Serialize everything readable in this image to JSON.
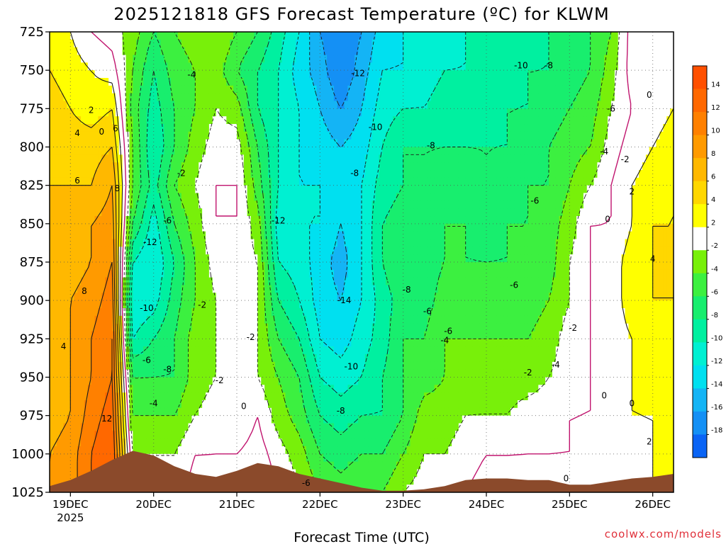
{
  "header": {
    "title": "2025121818 GFS Forecast Temperature (ºC) for KLWM"
  },
  "footer": {
    "xlabel": "Forecast Time (UTC)",
    "credit": "coolwx.com/models"
  },
  "colors": {
    "terrain": "#8b4a2b",
    "contour_pos": "#1a1a1a",
    "zero_line": "#c0146e",
    "bins": [
      {
        "lo": -20,
        "hi": -18,
        "color": "#0a64f5"
      },
      {
        "lo": -18,
        "hi": -16,
        "color": "#1490f5"
      },
      {
        "lo": -16,
        "hi": -14,
        "color": "#14b4f5"
      },
      {
        "lo": -14,
        "hi": -12,
        "color": "#00e0f0"
      },
      {
        "lo": -12,
        "hi": -10,
        "color": "#00f0d2"
      },
      {
        "lo": -10,
        "hi": -8,
        "color": "#00f0a0"
      },
      {
        "lo": -8,
        "hi": -6,
        "color": "#18ee6e"
      },
      {
        "lo": -6,
        "hi": -4,
        "color": "#3cf040"
      },
      {
        "lo": -4,
        "hi": -2,
        "color": "#78f00a"
      },
      {
        "lo": -2,
        "hi": 2,
        "color": "#ffffff"
      },
      {
        "lo": 2,
        "hi": 4,
        "color": "#ffff00"
      },
      {
        "lo": 4,
        "hi": 6,
        "color": "#ffd700"
      },
      {
        "lo": 6,
        "hi": 8,
        "color": "#ffb800"
      },
      {
        "lo": 8,
        "hi": 10,
        "color": "#ff9a00"
      },
      {
        "lo": 10,
        "hi": 12,
        "color": "#ff8000"
      },
      {
        "lo": 12,
        "hi": 14,
        "color": "#ff6800"
      },
      {
        "lo": 14,
        "hi": 16,
        "color": "#ff5000"
      }
    ]
  },
  "chart_data": {
    "type": "heatmap",
    "title": "2025121818 GFS Forecast Temperature (ºC) for KLWM",
    "xlabel": "Forecast Time (UTC)",
    "ylabel": "",
    "x_range_hours": [
      0,
      180
    ],
    "y_range_hpa": [
      725,
      1025
    ],
    "y_ticks": [
      "725",
      "750",
      "775",
      "800",
      "825",
      "850",
      "875",
      "900",
      "925",
      "950",
      "975",
      "1000",
      "1025"
    ],
    "x_ticks": [
      {
        "label": "19DEC",
        "hour": 6,
        "sub": "2025"
      },
      {
        "label": "20DEC",
        "hour": 30,
        "sub": ""
      },
      {
        "label": "21DEC",
        "hour": 54,
        "sub": ""
      },
      {
        "label": "22DEC",
        "hour": 78,
        "sub": ""
      },
      {
        "label": "23DEC",
        "hour": 102,
        "sub": ""
      },
      {
        "label": "24DEC",
        "hour": 126,
        "sub": ""
      },
      {
        "label": "25DEC",
        "hour": 150,
        "sub": ""
      },
      {
        "label": "26DEC",
        "hour": 174,
        "sub": ""
      }
    ],
    "colorbar_ticks": [
      "14",
      "12",
      "10",
      "8",
      "6",
      "4",
      "2",
      "-2",
      "-4",
      "-6",
      "-8",
      "-10",
      "-12",
      "-14",
      "-16",
      "-18"
    ],
    "grid": true,
    "pressure_levels": [
      725,
      750,
      775,
      800,
      825,
      850,
      875,
      900,
      925,
      950,
      975,
      1000,
      1025
    ],
    "temperature_by_time": [
      {
        "hour": 0,
        "temps": [
          3,
          4,
          5,
          5,
          6,
          6,
          6,
          7,
          6,
          6,
          7,
          8,
          8
        ]
      },
      {
        "hour": 6,
        "temps": [
          2,
          3,
          4,
          5,
          6,
          7,
          7,
          8,
          8,
          8,
          8,
          9,
          9
        ]
      },
      {
        "hour": 12,
        "temps": [
          0,
          2,
          3,
          5,
          6,
          8,
          8,
          9,
          10,
          10,
          11,
          12,
          12
        ]
      },
      {
        "hour": 18,
        "temps": [
          -1,
          1,
          4,
          6,
          8,
          9,
          10,
          11,
          12,
          12,
          13,
          14,
          14
        ]
      },
      {
        "hour": 24,
        "temps": [
          -3,
          -4,
          -5,
          -4,
          -4,
          -6,
          -10,
          -12,
          -10,
          -6,
          -4,
          -2,
          -1
        ]
      },
      {
        "hour": 30,
        "temps": [
          -6,
          -8,
          -9,
          -10,
          -9,
          -11,
          -12,
          -11,
          -8,
          -6,
          -4,
          -2,
          -1
        ]
      },
      {
        "hour": 36,
        "temps": [
          -4,
          -5,
          -6,
          -6,
          -4,
          -6,
          -8,
          -7,
          -6,
          -6,
          -4,
          -2,
          -1
        ]
      },
      {
        "hour": 42,
        "temps": [
          -3,
          -4,
          -4,
          -3,
          -2,
          -3,
          -4,
          -4,
          -3,
          -3,
          -2,
          0,
          1
        ]
      },
      {
        "hour": 48,
        "temps": [
          -2,
          -3,
          -2,
          -1,
          0,
          0,
          -1,
          -2,
          -2,
          -2,
          -1,
          0,
          1
        ]
      },
      {
        "hour": 54,
        "temps": [
          -4,
          -6,
          -3,
          -1,
          0,
          0,
          -1,
          -2,
          -1,
          -2,
          -2,
          0,
          2
        ]
      },
      {
        "hour": 60,
        "temps": [
          -6,
          -8,
          -8,
          -6,
          -5,
          -3,
          -2,
          -2,
          -2,
          -2,
          0,
          1,
          2
        ]
      },
      {
        "hour": 66,
        "temps": [
          -9,
          -10,
          -10,
          -10,
          -10,
          -11,
          -10,
          -8,
          -6,
          -4,
          -3,
          -1,
          0
        ]
      },
      {
        "hour": 72,
        "temps": [
          -12,
          -13,
          -12,
          -12,
          -12,
          -12,
          -11,
          -10,
          -8,
          -6,
          -5,
          -3,
          -2
        ]
      },
      {
        "hour": 78,
        "temps": [
          -16,
          -15,
          -14,
          -13,
          -12,
          -12,
          -13,
          -13,
          -12,
          -10,
          -8,
          -6,
          -4
        ]
      },
      {
        "hour": 84,
        "temps": [
          -18,
          -18,
          -16,
          -14,
          -13,
          -14,
          -15,
          -14,
          -13,
          -11,
          -9,
          -7,
          -5
        ]
      },
      {
        "hour": 90,
        "temps": [
          -16,
          -15,
          -14,
          -13,
          -12,
          -12,
          -12,
          -12,
          -11,
          -10,
          -8,
          -6,
          -4
        ]
      },
      {
        "hour": 96,
        "temps": [
          -13,
          -12,
          -11,
          -10,
          -9,
          -8,
          -8,
          -9,
          -9,
          -8,
          -8,
          -6,
          -4
        ]
      },
      {
        "hour": 102,
        "temps": [
          -12,
          -12,
          -10,
          -8,
          -8,
          -7,
          -6,
          -7,
          -6,
          -6,
          -6,
          -4,
          -2
        ]
      },
      {
        "hour": 108,
        "temps": [
          -11,
          -11,
          -10,
          -8,
          -8,
          -7,
          -7,
          -7,
          -6,
          -5,
          -3,
          -2,
          -1
        ]
      },
      {
        "hour": 114,
        "temps": [
          -11,
          -10,
          -9,
          -8,
          -7,
          -6,
          -6,
          -5,
          -4,
          -4,
          -3,
          -2,
          -1
        ]
      },
      {
        "hour": 120,
        "temps": [
          -10,
          -10,
          -9,
          -8,
          -7,
          -6,
          -6,
          -5,
          -4,
          -3,
          -2,
          -1,
          0
        ]
      },
      {
        "hour": 126,
        "temps": [
          -10,
          -10,
          -9,
          -8,
          -8,
          -7,
          -6,
          -5,
          -4,
          -3,
          -2,
          0,
          1
        ]
      },
      {
        "hour": 132,
        "temps": [
          -9,
          -9,
          -8,
          -8,
          -7,
          -6,
          -6,
          -5,
          -4,
          -3,
          -2,
          0,
          1
        ]
      },
      {
        "hour": 138,
        "temps": [
          -9,
          -8,
          -8,
          -7,
          -6,
          -6,
          -6,
          -5,
          -4,
          -3,
          -1,
          0,
          1
        ]
      },
      {
        "hour": 144,
        "temps": [
          -8,
          -8,
          -7,
          -6,
          -6,
          -5,
          -5,
          -4,
          -3,
          -2,
          -1,
          0,
          1
        ]
      },
      {
        "hour": 150,
        "temps": [
          -7,
          -7,
          -6,
          -5,
          -4,
          -3,
          -2,
          -2,
          -1,
          -1,
          0,
          0,
          1
        ]
      },
      {
        "hour": 156,
        "temps": [
          -6,
          -6,
          -5,
          -4,
          -2,
          0,
          0,
          0,
          0,
          0,
          0,
          1,
          1
        ]
      },
      {
        "hour": 162,
        "temps": [
          -4,
          -3,
          -2,
          -1,
          0,
          0,
          1,
          1,
          1,
          1,
          1,
          1,
          1
        ]
      },
      {
        "hour": 168,
        "temps": [
          1,
          1,
          0,
          1,
          2,
          2,
          3,
          3,
          2,
          2,
          2,
          1,
          1
        ]
      },
      {
        "hour": 174,
        "temps": [
          1,
          1,
          1,
          2,
          3,
          4,
          4,
          4,
          3,
          3,
          2,
          2,
          2
        ]
      },
      {
        "hour": 180,
        "temps": [
          1,
          1,
          2,
          3,
          4,
          4,
          4,
          4,
          3,
          3,
          3,
          2,
          2
        ]
      }
    ],
    "surface_pressure_hpa": [
      {
        "hour": 0,
        "p": 1021
      },
      {
        "hour": 6,
        "p": 1017
      },
      {
        "hour": 12,
        "p": 1011
      },
      {
        "hour": 18,
        "p": 1004
      },
      {
        "hour": 24,
        "p": 998
      },
      {
        "hour": 30,
        "p": 1001
      },
      {
        "hour": 36,
        "p": 1008
      },
      {
        "hour": 42,
        "p": 1013
      },
      {
        "hour": 48,
        "p": 1015
      },
      {
        "hour": 54,
        "p": 1011
      },
      {
        "hour": 60,
        "p": 1006
      },
      {
        "hour": 66,
        "p": 1008
      },
      {
        "hour": 72,
        "p": 1013
      },
      {
        "hour": 78,
        "p": 1016
      },
      {
        "hour": 84,
        "p": 1019
      },
      {
        "hour": 90,
        "p": 1022
      },
      {
        "hour": 96,
        "p": 1024
      },
      {
        "hour": 102,
        "p": 1024
      },
      {
        "hour": 108,
        "p": 1023
      },
      {
        "hour": 114,
        "p": 1021
      },
      {
        "hour": 120,
        "p": 1017
      },
      {
        "hour": 126,
        "p": 1016
      },
      {
        "hour": 132,
        "p": 1016
      },
      {
        "hour": 138,
        "p": 1017
      },
      {
        "hour": 144,
        "p": 1017
      },
      {
        "hour": 150,
        "p": 1020
      },
      {
        "hour": 156,
        "p": 1020
      },
      {
        "hour": 162,
        "p": 1018
      },
      {
        "hour": 168,
        "p": 1016
      },
      {
        "hour": 174,
        "p": 1015
      },
      {
        "hour": 180,
        "p": 1013
      }
    ],
    "contour_labels": [
      {
        "text": "2",
        "hour": 12,
        "p": 776
      },
      {
        "text": "0",
        "hour": 15,
        "p": 790
      },
      {
        "text": "6",
        "hour": 19,
        "p": 788
      },
      {
        "text": "4",
        "hour": 8,
        "p": 791
      },
      {
        "text": "6",
        "hour": 8,
        "p": 822
      },
      {
        "text": "8",
        "hour": 19.5,
        "p": 827
      },
      {
        "text": "8",
        "hour": 10,
        "p": 894
      },
      {
        "text": "4",
        "hour": 4,
        "p": 930
      },
      {
        "text": "12",
        "hour": 16.5,
        "p": 977
      },
      {
        "text": "-4",
        "hour": 41,
        "p": 753
      },
      {
        "text": "-2",
        "hour": 38,
        "p": 817
      },
      {
        "text": "-6",
        "hour": 34,
        "p": 848
      },
      {
        "text": "-12",
        "hour": 29,
        "p": 862
      },
      {
        "text": "-10",
        "hour": 28,
        "p": 905
      },
      {
        "text": "-6",
        "hour": 28,
        "p": 939
      },
      {
        "text": "-8",
        "hour": 34,
        "p": 945
      },
      {
        "text": "-4",
        "hour": 30,
        "p": 967
      },
      {
        "text": "-2",
        "hour": 44,
        "p": 903
      },
      {
        "text": "-2",
        "hour": 49,
        "p": 952
      },
      {
        "text": "-2",
        "hour": 58,
        "p": 924
      },
      {
        "text": "0",
        "hour": 56,
        "p": 969
      },
      {
        "text": "-12",
        "hour": 66,
        "p": 848
      },
      {
        "text": "-12",
        "hour": 89,
        "p": 752
      },
      {
        "text": "-10",
        "hour": 94,
        "p": 787
      },
      {
        "text": "-8",
        "hour": 88,
        "p": 817
      },
      {
        "text": "-14",
        "hour": 85,
        "p": 900
      },
      {
        "text": "-10",
        "hour": 87,
        "p": 943
      },
      {
        "text": "-8",
        "hour": 84,
        "p": 972
      },
      {
        "text": "-6",
        "hour": 74,
        "p": 1019
      },
      {
        "text": "-8",
        "hour": 110,
        "p": 799
      },
      {
        "text": "-10",
        "hour": 136,
        "p": 747
      },
      {
        "text": "-8",
        "hour": 144,
        "p": 747
      },
      {
        "text": "-8",
        "hour": 103,
        "p": 893
      },
      {
        "text": "-6",
        "hour": 109,
        "p": 907
      },
      {
        "text": "-6",
        "hour": 115,
        "p": 920
      },
      {
        "text": "-4",
        "hour": 114,
        "p": 926
      },
      {
        "text": "-6",
        "hour": 134,
        "p": 890
      },
      {
        "text": "-6",
        "hour": 140,
        "p": 835
      },
      {
        "text": "-2",
        "hour": 138,
        "p": 947
      },
      {
        "text": "-4",
        "hour": 146,
        "p": 942
      },
      {
        "text": "-2",
        "hour": 151,
        "p": 918
      },
      {
        "text": "-6",
        "hour": 162,
        "p": 775
      },
      {
        "text": "-4",
        "hour": 160,
        "p": 803
      },
      {
        "text": "-2",
        "hour": 166,
        "p": 808
      },
      {
        "text": "0",
        "hour": 161,
        "p": 847
      },
      {
        "text": "2",
        "hour": 168,
        "p": 829
      },
      {
        "text": "0",
        "hour": 173,
        "p": 766
      },
      {
        "text": "4",
        "hour": 174,
        "p": 873
      },
      {
        "text": "0",
        "hour": 160,
        "p": 962
      },
      {
        "text": "0",
        "hour": 168,
        "p": 967
      },
      {
        "text": "2",
        "hour": 173,
        "p": 992
      },
      {
        "text": "0",
        "hour": 149,
        "p": 1016
      }
    ]
  }
}
